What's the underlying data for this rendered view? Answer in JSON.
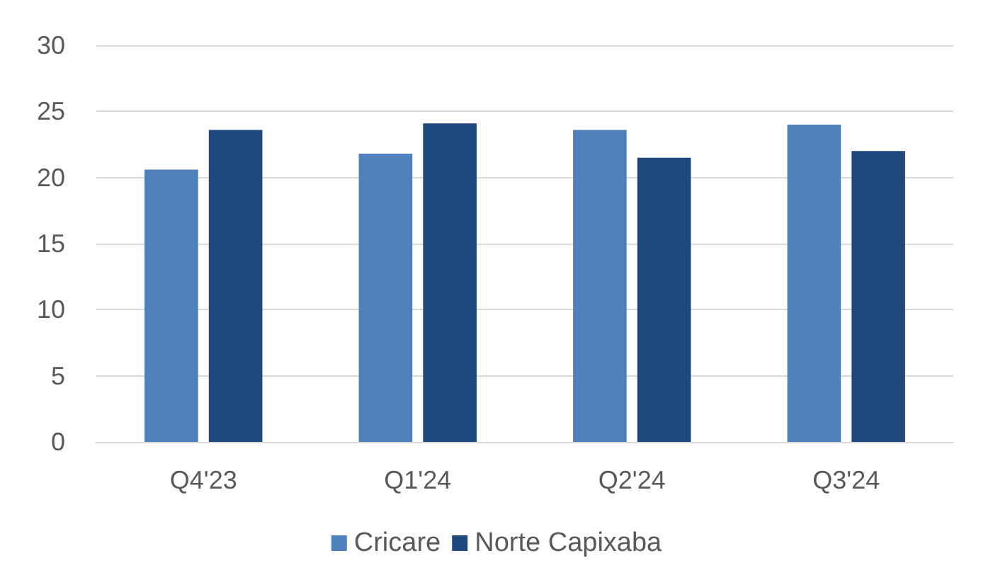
{
  "chart_data": {
    "type": "bar",
    "categories": [
      "Q4'23",
      "Q1'24",
      "Q2'24",
      "Q3'24"
    ],
    "series": [
      {
        "name": "Cricare",
        "color": "#4f81bd",
        "values": [
          20.6,
          21.8,
          23.6,
          24.0
        ]
      },
      {
        "name": "Norte Capixaba",
        "color": "#1f497d",
        "values": [
          23.6,
          24.1,
          21.5,
          22.0
        ]
      }
    ],
    "ylim": [
      0,
      30
    ],
    "yticks": [
      0,
      5,
      10,
      15,
      20,
      25,
      30
    ],
    "grid": "y",
    "legend": "bottom"
  }
}
